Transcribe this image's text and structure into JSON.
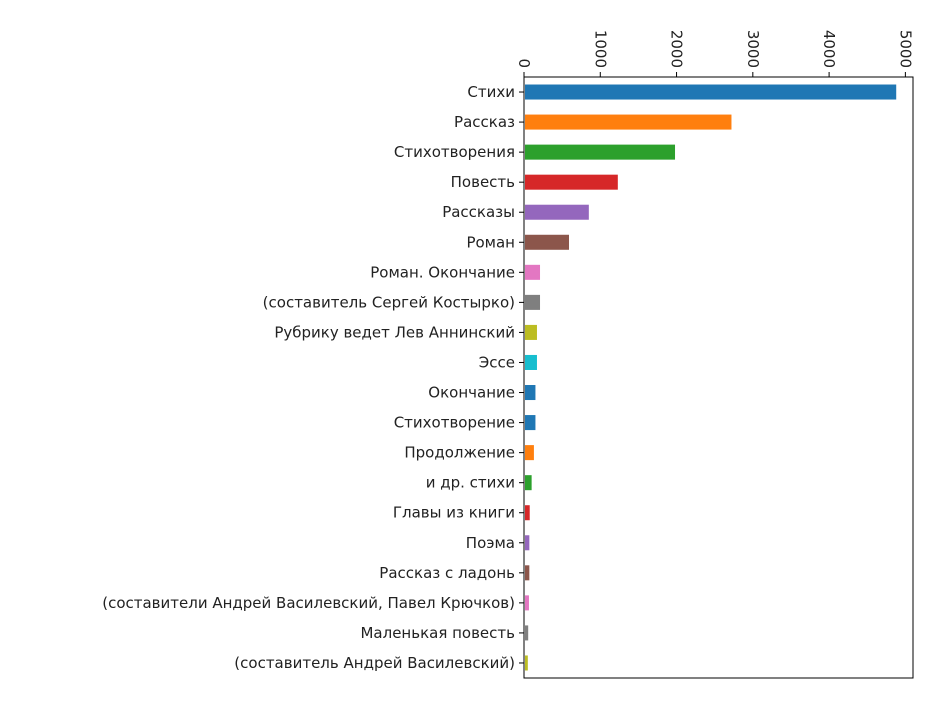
{
  "chart_data": {
    "type": "bar",
    "orientation": "horizontal",
    "title": "",
    "xlabel": "",
    "ylabel": "",
    "xlim": [
      0,
      5100
    ],
    "xticks": [
      0,
      1000,
      2000,
      3000,
      4000,
      5000
    ],
    "xtick_labels": [
      "0",
      "1000",
      "2000",
      "3000",
      "4000",
      "5000"
    ],
    "xaxis_position": "top",
    "xtick_label_rotation": "rotated 90° clockwise",
    "grid": false,
    "categories": [
      "Стихи",
      "Рассказ",
      "Стихотворения",
      "Повесть",
      "Рассказы",
      "Роман",
      "Роман. Окончание",
      "(составитель Сергей Костырко)",
      "Рубрику ведет Лев Аннинский",
      "Эссе",
      "Окончание",
      "Стихотворение",
      "Продолжение",
      "и др. стихи",
      "Главы из книги",
      "Поэма",
      "Рассказ с ладонь",
      "(составители Андрей Василевский, Павел Крючков)",
      "Маленькая повесть",
      "(составитель Андрей Василевский)"
    ],
    "values": [
      4880,
      2720,
      1980,
      1230,
      850,
      590,
      210,
      210,
      170,
      170,
      150,
      150,
      130,
      100,
      75,
      70,
      70,
      65,
      55,
      50
    ],
    "colors": [
      "#1f77b4",
      "#ff7f0e",
      "#2ca02c",
      "#d62728",
      "#9467bd",
      "#8c564b",
      "#e377c2",
      "#7f7f7f",
      "#bcbd22",
      "#17becf",
      "#1f77b4",
      "#1f77b4",
      "#ff7f0e",
      "#2ca02c",
      "#d62728",
      "#9467bd",
      "#8c564b",
      "#e377c2",
      "#7f7f7f",
      "#bcbd22"
    ]
  }
}
